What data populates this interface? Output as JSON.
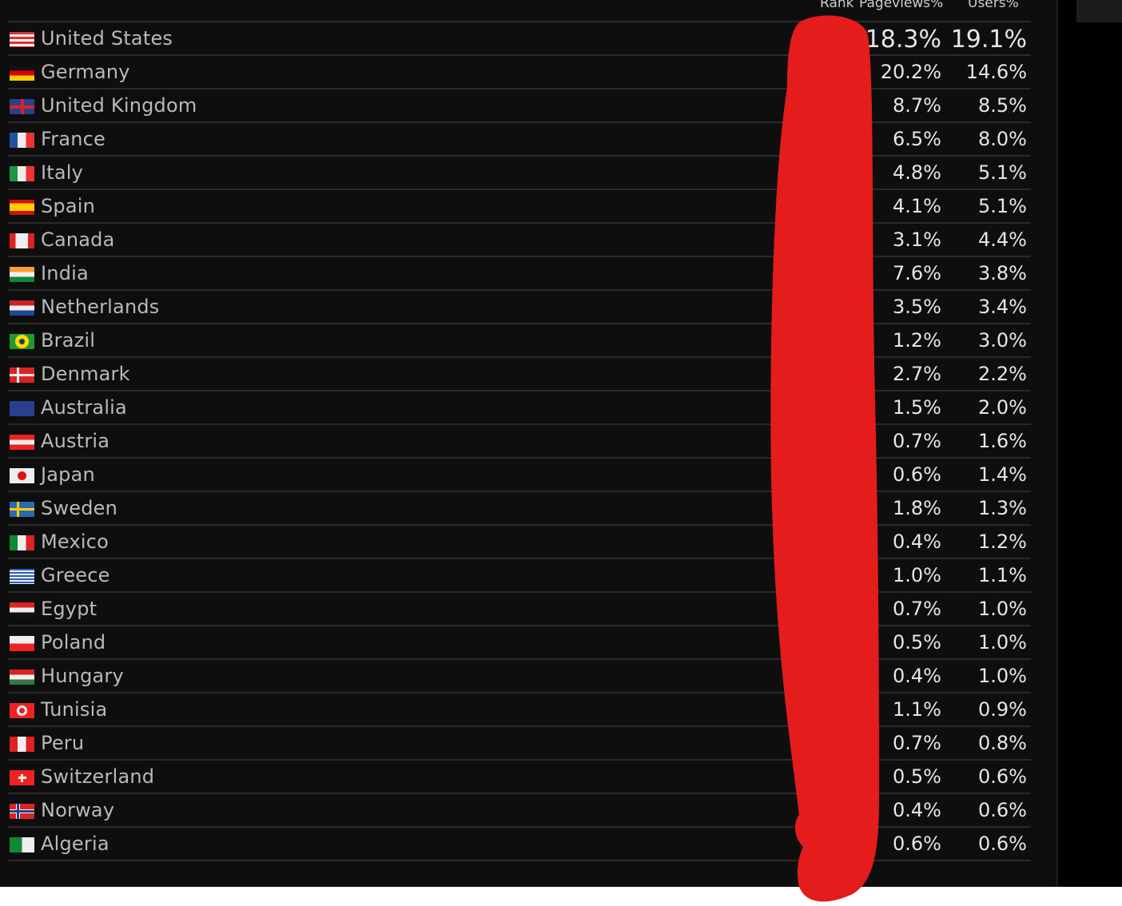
{
  "header": {
    "rank": "Rank",
    "pageviews": "Pageviews%",
    "users": "Users%"
  },
  "rows": [
    {
      "country": "United States",
      "flag": "us-flag",
      "pageviews": "18.3%",
      "users": "19.1%"
    },
    {
      "country": "Germany",
      "flag": "de-flag",
      "pageviews": "20.2%",
      "users": "14.6%"
    },
    {
      "country": "United Kingdom",
      "flag": "gb-flag",
      "pageviews": "8.7%",
      "users": "8.5%"
    },
    {
      "country": "France",
      "flag": "fr-flag",
      "pageviews": "6.5%",
      "users": "8.0%"
    },
    {
      "country": "Italy",
      "flag": "it-flag",
      "pageviews": "4.8%",
      "users": "5.1%"
    },
    {
      "country": "Spain",
      "flag": "es-flag",
      "pageviews": "4.1%",
      "users": "5.1%"
    },
    {
      "country": "Canada",
      "flag": "ca-flag",
      "pageviews": "3.1%",
      "users": "4.4%"
    },
    {
      "country": "India",
      "flag": "in-flag",
      "pageviews": "7.6%",
      "users": "3.8%"
    },
    {
      "country": "Netherlands",
      "flag": "nl-flag",
      "pageviews": "3.5%",
      "users": "3.4%"
    },
    {
      "country": "Brazil",
      "flag": "br-flag",
      "pageviews": "1.2%",
      "users": "3.0%"
    },
    {
      "country": "Denmark",
      "flag": "dk-flag",
      "pageviews": "2.7%",
      "users": "2.2%"
    },
    {
      "country": "Australia",
      "flag": "au-flag",
      "pageviews": "1.5%",
      "users": "2.0%"
    },
    {
      "country": "Austria",
      "flag": "at-flag",
      "pageviews": "0.7%",
      "users": "1.6%"
    },
    {
      "country": "Japan",
      "flag": "jp-flag",
      "pageviews": "0.6%",
      "users": "1.4%"
    },
    {
      "country": "Sweden",
      "flag": "se-flag",
      "pageviews": "1.8%",
      "users": "1.3%"
    },
    {
      "country": "Mexico",
      "flag": "mx-flag",
      "pageviews": "0.4%",
      "users": "1.2%"
    },
    {
      "country": "Greece",
      "flag": "gr-flag",
      "pageviews": "1.0%",
      "users": "1.1%"
    },
    {
      "country": "Egypt",
      "flag": "eg-flag",
      "pageviews": "0.7%",
      "users": "1.0%"
    },
    {
      "country": "Poland",
      "flag": "pl-flag",
      "pageviews": "0.5%",
      "users": "1.0%"
    },
    {
      "country": "Hungary",
      "flag": "hu-flag",
      "pageviews": "0.4%",
      "users": "1.0%"
    },
    {
      "country": "Tunisia",
      "flag": "tn-flag",
      "pageviews": "1.1%",
      "users": "0.9%"
    },
    {
      "country": "Peru",
      "flag": "pe-flag",
      "pageviews": "0.7%",
      "users": "0.8%"
    },
    {
      "country": "Switzerland",
      "flag": "ch-flag",
      "pageviews": "0.5%",
      "users": "0.6%"
    },
    {
      "country": "Norway",
      "flag": "no-flag",
      "pageviews": "0.4%",
      "users": "0.6%"
    },
    {
      "country": "Algeria",
      "flag": "dz-flag",
      "pageviews": "0.6%",
      "users": "0.6%"
    }
  ],
  "colors": {
    "background": "#0e0e0e",
    "divider": "#2a2a2a",
    "redaction": "#e41c1c"
  }
}
